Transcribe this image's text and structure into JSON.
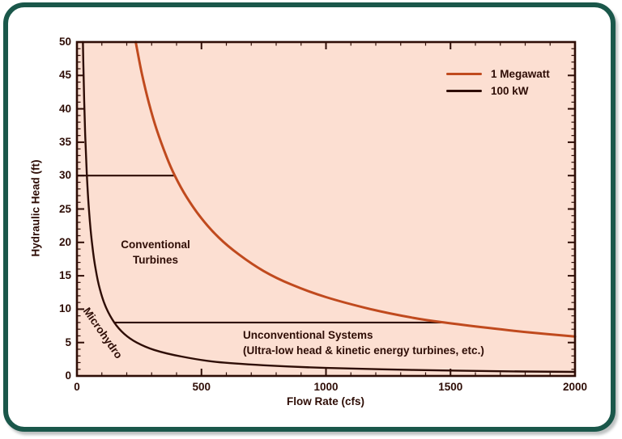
{
  "frame": {
    "border_color": "#1a574a",
    "card_bg": "#ffffff"
  },
  "chart_data": {
    "type": "line",
    "title": "",
    "xlabel": "Flow Rate (cfs)",
    "ylabel": "Hydraulic Head (ft)",
    "xlim": [
      0,
      2000
    ],
    "ylim": [
      0,
      50
    ],
    "x_major_ticks": [
      0,
      500,
      1000,
      1500,
      2000
    ],
    "x_minor_step": 100,
    "y_major_step": 5,
    "y_minor_step": 1,
    "grid": false,
    "legend_position": "top-right",
    "plot_bg_color": "#fcdfd2",
    "axis_color": "#2e0d06",
    "series": [
      {
        "name": "1 Megawatt",
        "color": "#c04a1e",
        "width": 3,
        "points": [
          [
            236,
            50
          ],
          [
            260,
            45.4
          ],
          [
            290,
            40.7
          ],
          [
            320,
            36.9
          ],
          [
            360,
            32.8
          ],
          [
            393,
            30
          ],
          [
            440,
            26.8
          ],
          [
            500,
            23.6
          ],
          [
            570,
            20.7
          ],
          [
            650,
            18.2
          ],
          [
            750,
            15.7
          ],
          [
            860,
            13.7
          ],
          [
            1000,
            11.8
          ],
          [
            1180,
            10
          ],
          [
            1350,
            8.7
          ],
          [
            1475,
            8
          ],
          [
            1650,
            7.2
          ],
          [
            1820,
            6.5
          ],
          [
            2000,
            5.9
          ]
        ]
      },
      {
        "name": "100 kW",
        "color": "#2e0d06",
        "width": 2.4,
        "points": [
          [
            24,
            50
          ],
          [
            26,
            46.2
          ],
          [
            29,
            41.4
          ],
          [
            33,
            36.4
          ],
          [
            38,
            31.6
          ],
          [
            44,
            27.3
          ],
          [
            52,
            23.1
          ],
          [
            62,
            19.4
          ],
          [
            75,
            16
          ],
          [
            92,
            13
          ],
          [
            115,
            10.4
          ],
          [
            150,
            8
          ],
          [
            190,
            6.3
          ],
          [
            240,
            5
          ],
          [
            310,
            3.9
          ],
          [
            420,
            2.9
          ],
          [
            560,
            2.1
          ],
          [
            750,
            1.6
          ],
          [
            1000,
            1.2
          ],
          [
            1350,
            0.9
          ],
          [
            1700,
            0.7
          ],
          [
            2000,
            0.6
          ]
        ]
      }
    ],
    "boundary_lines": [
      {
        "head_ft": 30,
        "from_cfs": 0,
        "to_cfs": 393
      },
      {
        "head_ft": 8,
        "from_cfs": 150,
        "to_cfs": 1475
      }
    ],
    "annotations": [
      {
        "lines": [
          "Conventional",
          "Turbines"
        ],
        "x": 192,
        "y": 293,
        "align": "center",
        "rotate": 0
      },
      {
        "lines": [
          "Microhydro"
        ],
        "x": 127,
        "y": 412,
        "align": "center",
        "rotate": 55
      },
      {
        "lines": [
          "Unconventional Systems",
          "(Ultra-low head & kinetic energy turbines, etc.)"
        ],
        "x": 300,
        "y": 405,
        "align": "left",
        "rotate": 0
      }
    ]
  }
}
